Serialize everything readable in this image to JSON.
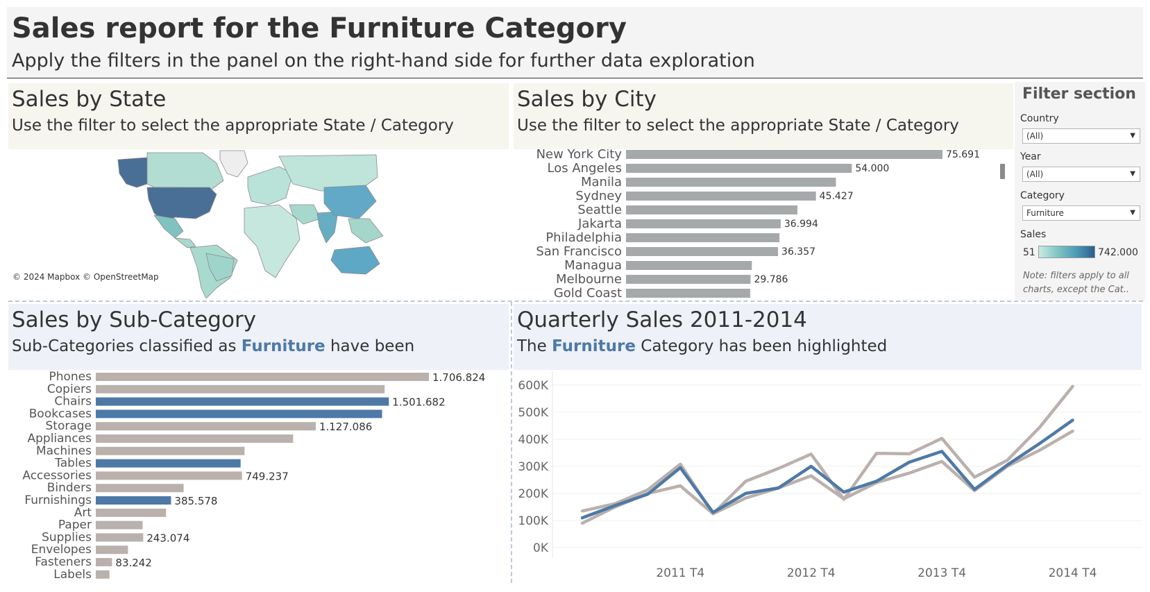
{
  "header": {
    "title": "Sales report for the Furniture Category",
    "subtitle": "Apply the filters in the panel on the right-hand side for further data exploration"
  },
  "state_panel": {
    "title": "Sales by State",
    "subtitle": "Use the filter to select the appropriate State / Category",
    "map_attribution": "© 2024 Mapbox © OpenStreetMap"
  },
  "city_panel": {
    "title": "Sales by City",
    "subtitle": "Use the filter to select the appropriate State / Category"
  },
  "subcat_panel": {
    "title": "Sales by Sub-Category",
    "subtitle_pre": "Sub-Categories classified as ",
    "subtitle_highlight": "Furniture",
    "subtitle_post": " have been"
  },
  "quarter_panel": {
    "title": "Quarterly Sales 2011-2014",
    "subtitle_pre": "The ",
    "subtitle_highlight": "Furniture",
    "subtitle_post": " Category has been highlighted"
  },
  "filters": {
    "title": "Filter section",
    "country_label": "Country",
    "country_value": "(All)",
    "year_label": "Year",
    "year_value": "(All)",
    "category_label": "Category",
    "category_value": "Furniture",
    "sales_label": "Sales",
    "sales_min": "51",
    "sales_max": "742.000",
    "note": "Note: filters apply to all charts, except the Cat.."
  },
  "colors": {
    "accent": "#4e79a7",
    "bar_gray": "#a5a9aa",
    "bar_taupe": "#bab0ac",
    "line_taupe": "#bab0ac"
  },
  "chart_data": [
    {
      "id": "city",
      "type": "bar",
      "orientation": "horizontal",
      "title": "Sales by City",
      "categories": [
        "New York City",
        "Los Angeles",
        "Manila",
        "Sydney",
        "Seattle",
        "Jakarta",
        "Philadelphia",
        "San Francisco",
        "Managua",
        "Melbourne",
        "Gold Coast"
      ],
      "values": [
        75691,
        54000,
        50200,
        45427,
        41000,
        36994,
        36700,
        36357,
        30100,
        29786,
        29700
      ],
      "labels": [
        "75.691",
        "54.000",
        "",
        "45.427",
        "",
        "36.994",
        "",
        "36.357",
        "",
        "29.786",
        ""
      ]
    },
    {
      "id": "subcat",
      "type": "bar",
      "orientation": "horizontal",
      "title": "Sales by Sub-Category",
      "categories": [
        "Phones",
        "Copiers",
        "Chairs",
        "Bookcases",
        "Storage",
        "Appliances",
        "Machines",
        "Tables",
        "Accessories",
        "Binders",
        "Furnishings",
        "Art",
        "Paper",
        "Supplies",
        "Envelopes",
        "Fasteners",
        "Labels"
      ],
      "values": [
        1706824,
        1480000,
        1501682,
        1467000,
        1127086,
        1011000,
        762000,
        742000,
        749237,
        450000,
        385578,
        360000,
        240000,
        243074,
        165000,
        83242,
        70000
      ],
      "highlighted": [
        false,
        false,
        true,
        true,
        false,
        false,
        false,
        true,
        false,
        false,
        true,
        false,
        false,
        false,
        false,
        false,
        false
      ],
      "labels": [
        "1.706.824",
        "",
        "1.501.682",
        "",
        "1.127.086",
        "",
        "",
        "",
        "749.237",
        "",
        "385.578",
        "",
        "",
        "243.074",
        "",
        "83.242",
        ""
      ]
    },
    {
      "id": "quarterly",
      "type": "line",
      "title": "Quarterly Sales 2011-2014",
      "x_tick_labels": [
        "2011 T4",
        "2012 T4",
        "2013 T4",
        "2014 T4"
      ],
      "y_tick_labels": [
        "0K",
        "100K",
        "200K",
        "300K",
        "400K",
        "500K",
        "600K"
      ],
      "ylim": [
        0,
        620000
      ],
      "grid": true,
      "series": [
        {
          "values": [
            110000,
            155000,
            197000,
            295000,
            130000,
            200000,
            220000,
            300000,
            205000,
            245000,
            315000,
            355000,
            215000,
            305000,
            385000,
            470000
          ],
          "highlighted": true
        },
        {
          "values": [
            135000,
            162000,
            213000,
            308000,
            125000,
            245000,
            292000,
            345000,
            178000,
            348000,
            346000,
            403000,
            260000,
            322000,
            445000,
            595000
          ],
          "highlighted": false
        },
        {
          "values": [
            90000,
            150000,
            200000,
            228000,
            125000,
            183000,
            220000,
            265000,
            180000,
            240000,
            275000,
            318000,
            210000,
            300000,
            360000,
            430000
          ],
          "highlighted": false
        }
      ]
    }
  ]
}
